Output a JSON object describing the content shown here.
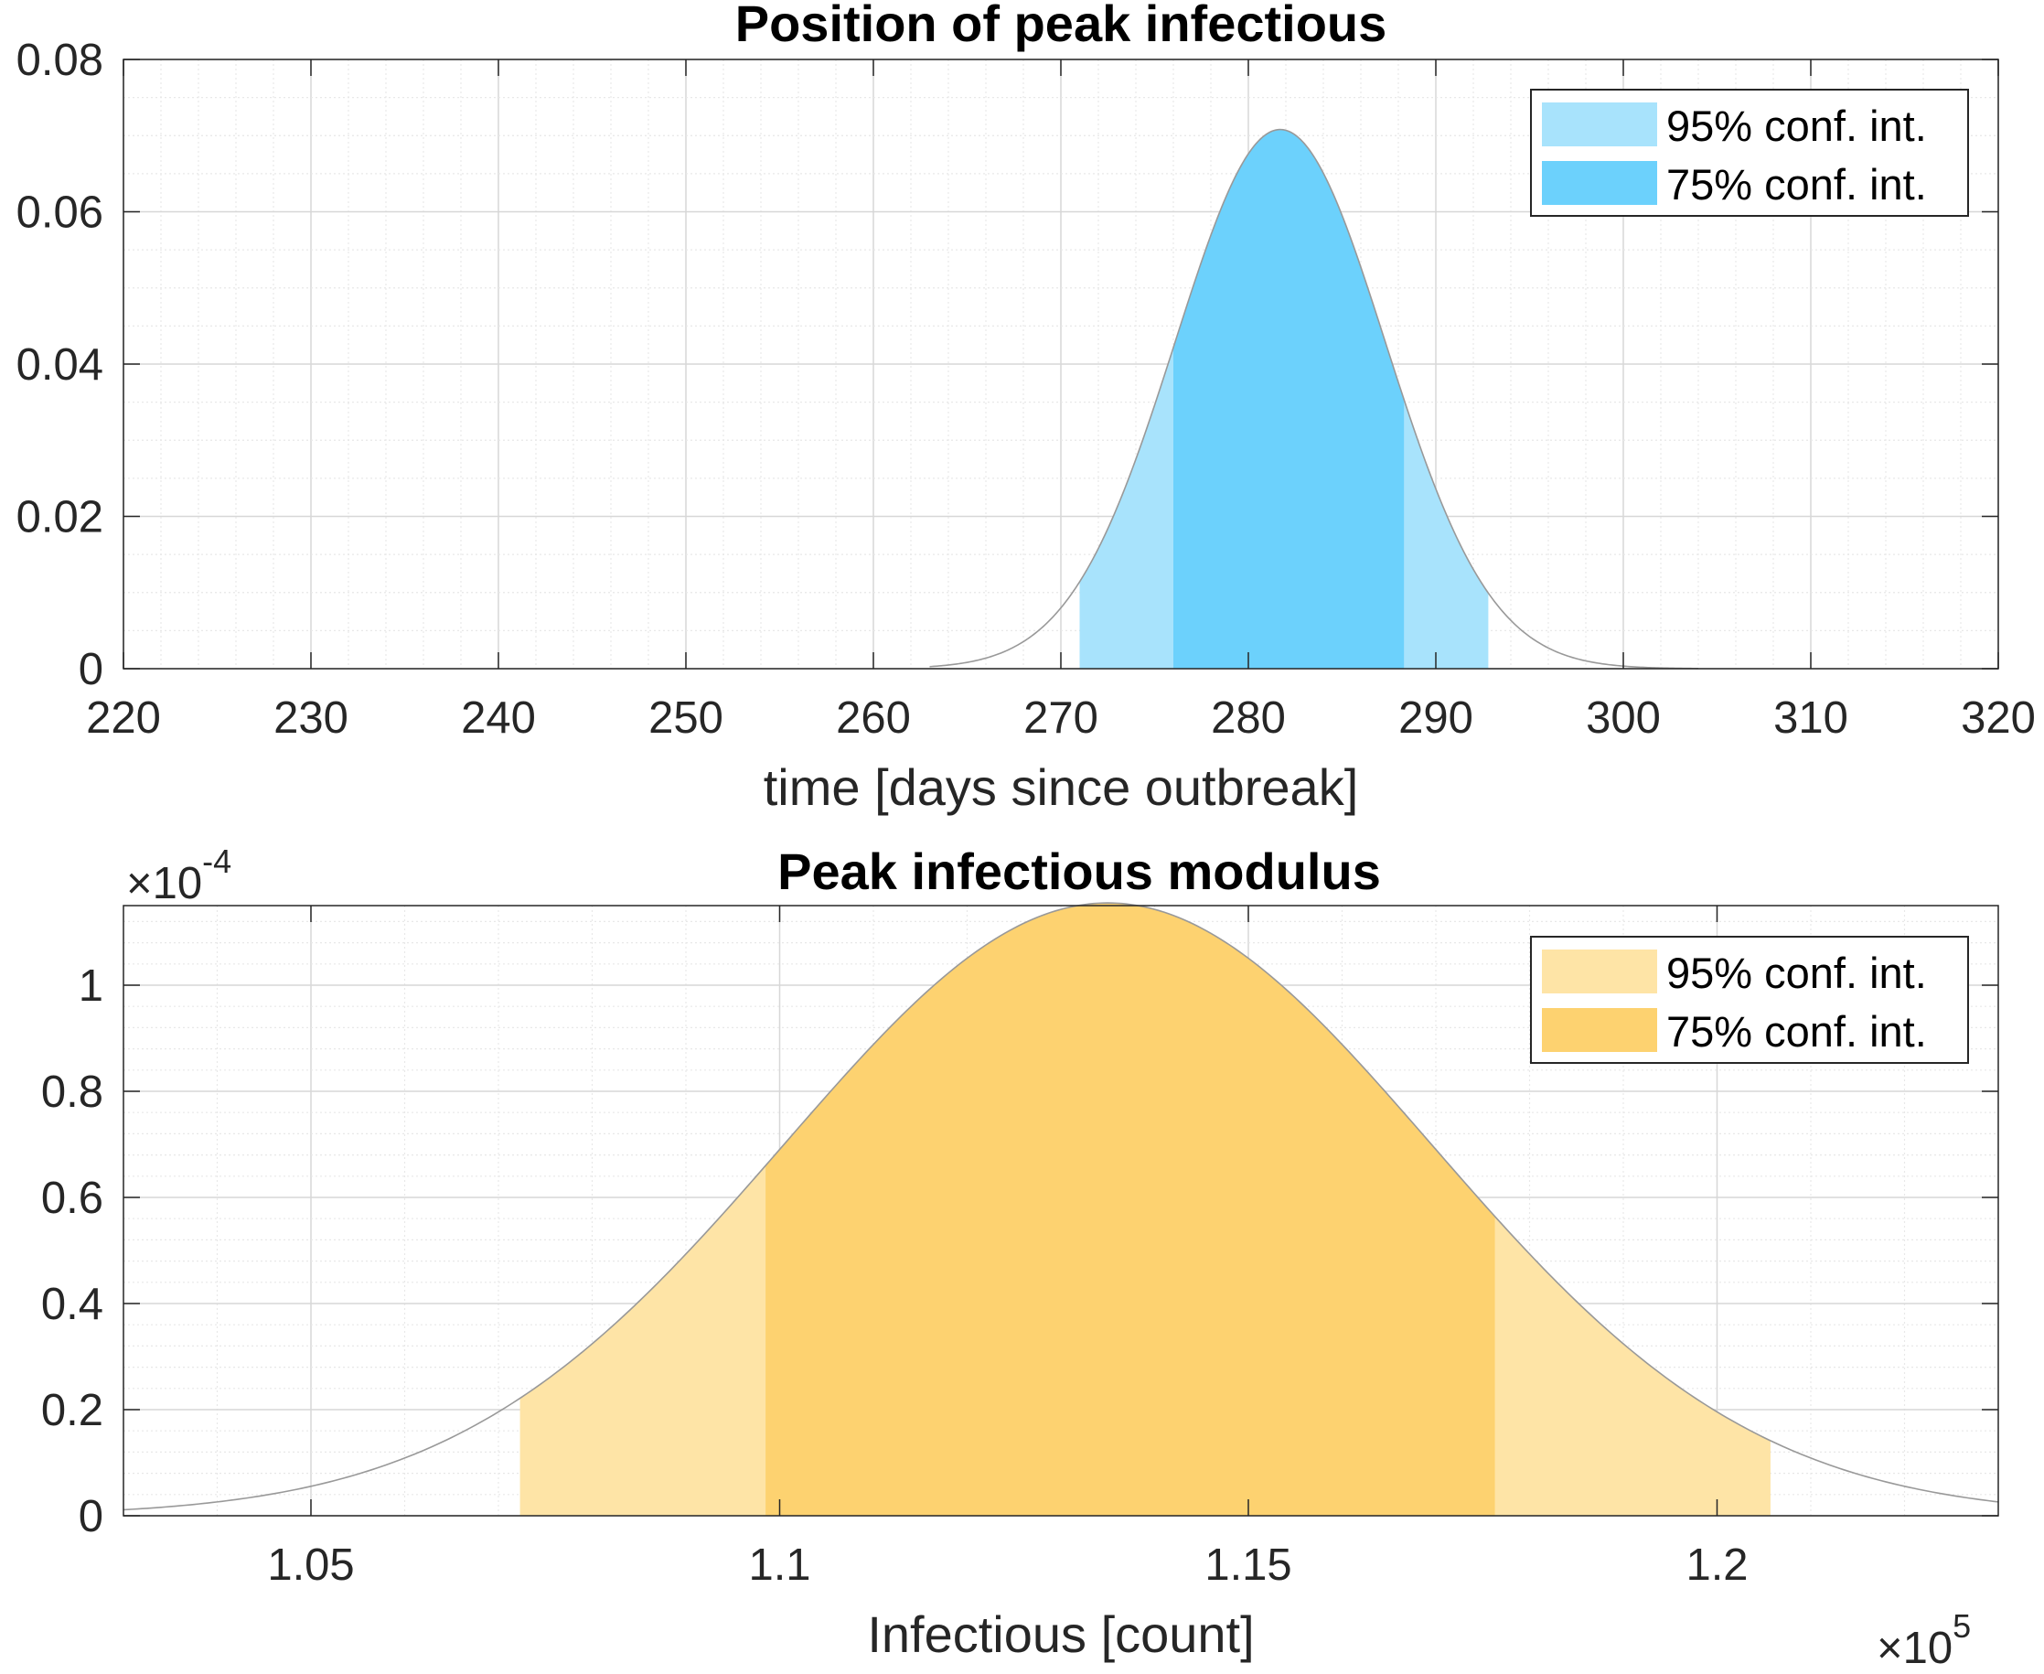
{
  "colors": {
    "top_ci95": "#A8E3FC",
    "top_ci75": "#6CD1FC",
    "bottom_ci95": "#FEE4A6",
    "bottom_ci75": "#FDD270",
    "curve": "#999999",
    "axis": "#262626",
    "grid_major": "#D7D7D7",
    "grid_minor": "#E8E8E8"
  },
  "chart_data": [
    {
      "type": "area",
      "title": "Position of peak infectious",
      "xlabel": "time [days since outbreak]",
      "ylabel": "",
      "xlim": [
        220,
        320
      ],
      "ylim": [
        0,
        0.08
      ],
      "xticks": [
        220,
        230,
        240,
        250,
        260,
        270,
        280,
        290,
        300,
        310,
        320
      ],
      "xtick_labels": [
        "220",
        "230",
        "240",
        "250",
        "260",
        "270",
        "280",
        "290",
        "300",
        "310",
        "320"
      ],
      "yticks": [
        0,
        0.02,
        0.04,
        0.06,
        0.08
      ],
      "ytick_labels": [
        "0",
        "0.02",
        "0.04",
        "0.06",
        "0.08"
      ],
      "grid": true,
      "legend_position": "top-right",
      "distribution": {
        "shape": "normal",
        "peak_x": 281.7,
        "peak_y": 0.0708,
        "sd": 5.6
      },
      "curve_range": [
        263,
        304
      ],
      "bands": [
        {
          "label": "95% conf. int.",
          "from": 271.0,
          "to": 292.8,
          "color": "#A8E3FC"
        },
        {
          "label": "75% conf. int.",
          "from": 276.0,
          "to": 288.3,
          "color": "#6CD1FC"
        }
      ],
      "x_multiplier_label": "",
      "y_multiplier_label": ""
    },
    {
      "type": "area",
      "title": "Peak infectious modulus",
      "xlabel": "Infectious [count]",
      "ylabel": "",
      "xlim": [
        1.03,
        1.23
      ],
      "ylim": [
        0,
        1.15
      ],
      "xticks": [
        1.05,
        1.1,
        1.15,
        1.2
      ],
      "xtick_labels": [
        "1.05",
        "1.1",
        "1.15",
        "1.2"
      ],
      "yticks": [
        0,
        0.2,
        0.4,
        0.6,
        0.8,
        1
      ],
      "ytick_labels": [
        "0",
        "0.2",
        "0.4",
        "0.6",
        "0.8",
        "1"
      ],
      "grid": true,
      "legend_position": "top-right",
      "distribution": {
        "shape": "normal",
        "peak_x": 1.135,
        "peak_y": 1.155,
        "sd": 0.0345
      },
      "curve_range": [
        1.03,
        1.23
      ],
      "bands": [
        {
          "label": "95% conf. int.",
          "from": 1.0723,
          "to": 1.2057,
          "color": "#FEE4A6"
        },
        {
          "label": "75% conf. int.",
          "from": 1.0985,
          "to": 1.1763,
          "color": "#FDD270"
        }
      ],
      "x_multiplier_label": "×10",
      "x_multiplier_exp": "5",
      "y_multiplier_label": "×10",
      "y_multiplier_exp": "-4"
    }
  ]
}
